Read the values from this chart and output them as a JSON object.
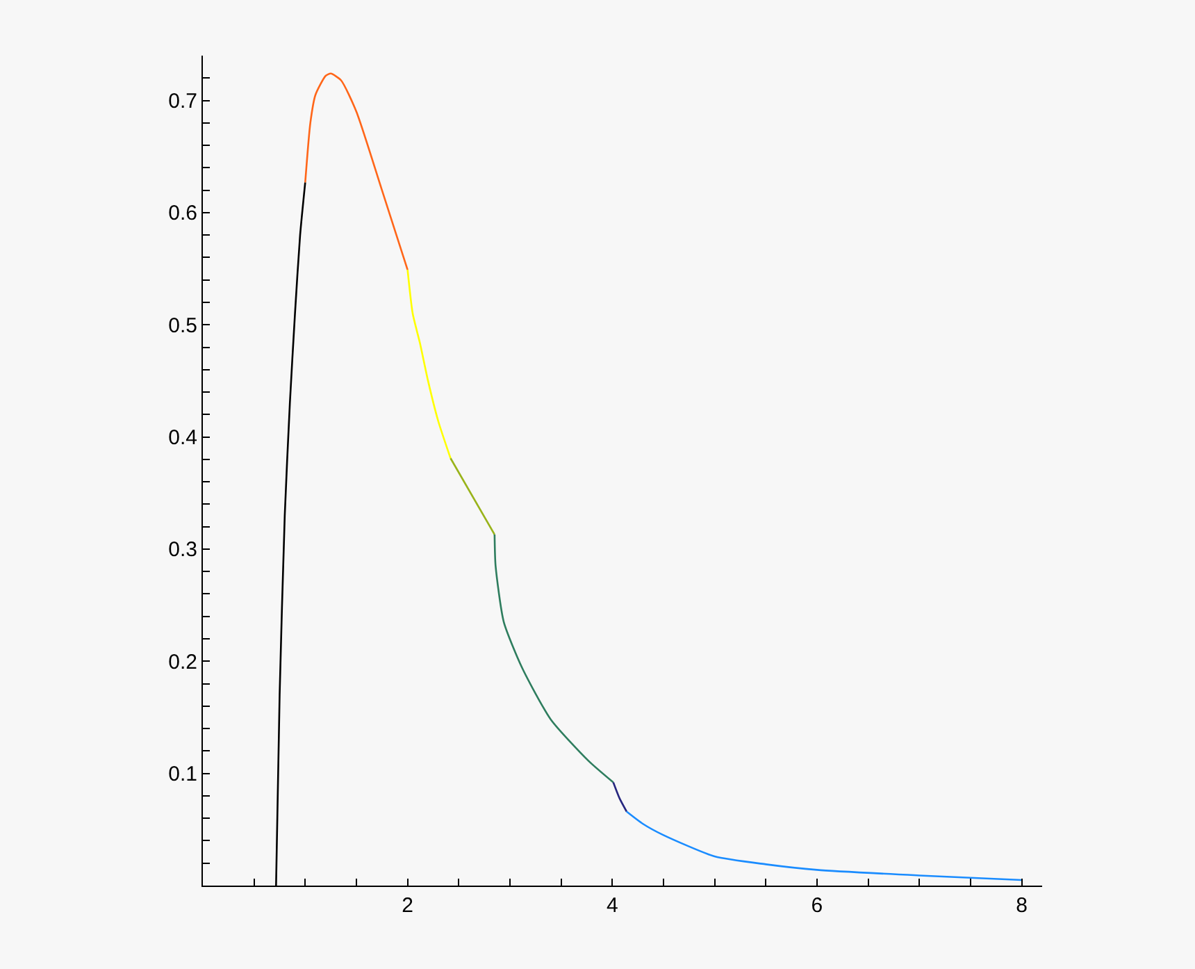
{
  "chart_data": {
    "type": "line",
    "xlim": [
      0,
      8.2
    ],
    "ylim": [
      0,
      0.74
    ],
    "xticks": [
      {
        "value": 0.5,
        "label": null
      },
      {
        "value": 1,
        "label": null
      },
      {
        "value": 1.5,
        "label": null
      },
      2,
      {
        "value": 2.5,
        "label": null
      },
      {
        "value": 3,
        "label": null
      },
      {
        "value": 3.5,
        "label": null
      },
      4,
      {
        "value": 4.5,
        "label": null
      },
      {
        "value": 5,
        "label": null
      },
      {
        "value": 5.5,
        "label": null
      },
      6,
      {
        "value": 6.5,
        "label": null
      },
      {
        "value": 7,
        "label": null
      },
      {
        "value": 7.5,
        "label": null
      },
      8
    ],
    "yticks": [
      {
        "value": 0.02,
        "label": null
      },
      {
        "value": 0.04,
        "label": null
      },
      {
        "value": 0.06,
        "label": null
      },
      {
        "value": 0.08,
        "label": null
      },
      0.1,
      {
        "value": 0.12,
        "label": null
      },
      {
        "value": 0.14,
        "label": null
      },
      {
        "value": 0.16,
        "label": null
      },
      {
        "value": 0.18,
        "label": null
      },
      0.2,
      {
        "value": 0.22,
        "label": null
      },
      {
        "value": 0.24,
        "label": null
      },
      {
        "value": 0.26,
        "label": null
      },
      {
        "value": 0.28,
        "label": null
      },
      0.3,
      {
        "value": 0.32,
        "label": null
      },
      {
        "value": 0.34,
        "label": null
      },
      {
        "value": 0.36,
        "label": null
      },
      {
        "value": 0.38,
        "label": null
      },
      0.4,
      {
        "value": 0.42,
        "label": null
      },
      {
        "value": 0.44,
        "label": null
      },
      {
        "value": 0.46,
        "label": null
      },
      {
        "value": 0.48,
        "label": null
      },
      0.5,
      {
        "value": 0.52,
        "label": null
      },
      {
        "value": 0.54,
        "label": null
      },
      {
        "value": 0.56,
        "label": null
      },
      {
        "value": 0.58,
        "label": null
      },
      0.6,
      {
        "value": 0.62,
        "label": null
      },
      {
        "value": 0.64,
        "label": null
      },
      {
        "value": 0.66,
        "label": null
      },
      {
        "value": 0.68,
        "label": null
      },
      0.7,
      {
        "value": 0.72,
        "label": null
      }
    ],
    "grid": false,
    "marker": "none",
    "line_style": "solid",
    "series": [
      {
        "color": "#000000",
        "x": [
          0.715,
          0.75,
          0.8,
          0.85,
          0.9,
          0.95,
          1.0
        ],
        "values": [
          0,
          0.17,
          0.33,
          0.43,
          0.51,
          0.58,
          0.627
        ]
      },
      {
        "color": "#ff6619",
        "x": [
          1.0,
          1.05,
          1.1,
          1.2,
          1.25,
          1.35,
          1.5,
          1.75,
          2.0
        ],
        "values": [
          0.627,
          0.68,
          0.705,
          0.722,
          0.724,
          0.718,
          0.69,
          0.62,
          0.549
        ]
      },
      {
        "color": "#ffff00",
        "x": [
          2.0,
          2.05,
          2.12,
          2.2,
          2.3,
          2.42
        ],
        "values": [
          0.549,
          0.51,
          0.484,
          0.45,
          0.414,
          0.381
        ]
      },
      {
        "color": "#99b31a",
        "x": [
          2.42,
          2.85
        ],
        "values": [
          0.381,
          0.313
        ]
      },
      {
        "color": "#2e7d5e",
        "x": [
          2.85,
          2.86,
          2.94,
          3.12,
          3.4,
          3.77,
          4.01
        ],
        "values": [
          0.313,
          0.285,
          0.235,
          0.194,
          0.148,
          0.111,
          0.092
        ]
      },
      {
        "color": "#26267f",
        "x": [
          4.01,
          4.07,
          4.14
        ],
        "values": [
          0.092,
          0.078,
          0.066
        ]
      },
      {
        "color": "#1a8cff",
        "x": [
          4.14,
          4.3,
          4.5,
          5,
          5.5,
          6,
          7,
          8
        ],
        "values": [
          0.066,
          0.055,
          0.045,
          0.026,
          0.019,
          0.014,
          0.009,
          0.005
        ]
      }
    ]
  }
}
